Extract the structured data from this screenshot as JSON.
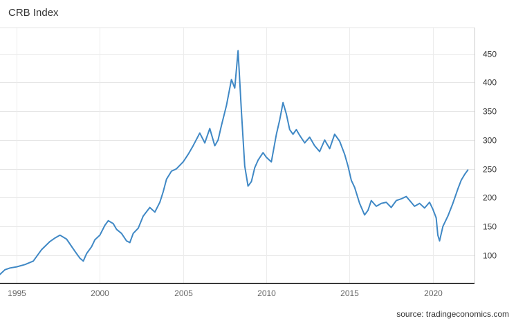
{
  "chart_data": {
    "type": "line",
    "title": "CRB Index",
    "source": "source: tradingeconomics.com",
    "xlabel": "",
    "ylabel": "",
    "xlim": [
      1994,
      2022.5
    ],
    "ylim": [
      52,
      495
    ],
    "x_ticks": [
      1995,
      2000,
      2005,
      2010,
      2015,
      2020
    ],
    "y_ticks": [
      100,
      150,
      200,
      250,
      300,
      350,
      400,
      450
    ],
    "grid": true,
    "line_color": "#3f88c5",
    "series": [
      {
        "name": "",
        "x": [
          1994.0,
          1994.3,
          1994.6,
          1995.0,
          1995.5,
          1996.0,
          1996.5,
          1997.0,
          1997.3,
          1997.6,
          1998.0,
          1998.5,
          1998.8,
          1999.0,
          1999.2,
          1999.5,
          1999.7,
          2000.0,
          2000.3,
          2000.5,
          2000.8,
          2001.0,
          2001.3,
          2001.6,
          2001.8,
          2002.0,
          2002.3,
          2002.6,
          2003.0,
          2003.3,
          2003.6,
          2003.8,
          2004.0,
          2004.3,
          2004.6,
          2005.0,
          2005.3,
          2005.6,
          2006.0,
          2006.3,
          2006.6,
          2006.9,
          2007.1,
          2007.3,
          2007.6,
          2007.9,
          2008.1,
          2008.3,
          2008.5,
          2008.7,
          2008.9,
          2009.1,
          2009.3,
          2009.5,
          2009.8,
          2010.0,
          2010.3,
          2010.6,
          2010.8,
          2011.0,
          2011.2,
          2011.4,
          2011.6,
          2011.8,
          2012.0,
          2012.3,
          2012.6,
          2012.9,
          2013.2,
          2013.5,
          2013.8,
          2014.1,
          2014.4,
          2014.7,
          2014.9,
          2015.1,
          2015.3,
          2015.6,
          2015.9,
          2016.1,
          2016.3,
          2016.6,
          2016.9,
          2017.2,
          2017.5,
          2017.8,
          2018.1,
          2018.4,
          2018.7,
          2018.9,
          2019.2,
          2019.5,
          2019.8,
          2020.0,
          2020.2,
          2020.3,
          2020.4,
          2020.6,
          2020.9,
          2021.2,
          2021.5,
          2021.7,
          2021.9,
          2022.1
        ],
        "values": [
          67,
          75,
          78,
          80,
          84,
          90,
          110,
          124,
          130,
          135,
          128,
          107,
          95,
          90,
          103,
          115,
          127,
          135,
          152,
          160,
          155,
          145,
          138,
          125,
          122,
          138,
          147,
          168,
          183,
          175,
          192,
          210,
          232,
          246,
          250,
          262,
          275,
          290,
          312,
          295,
          320,
          290,
          300,
          325,
          360,
          405,
          390,
          455,
          350,
          255,
          220,
          228,
          252,
          265,
          278,
          270,
          262,
          310,
          335,
          365,
          345,
          318,
          310,
          318,
          308,
          295,
          305,
          290,
          280,
          300,
          285,
          310,
          298,
          275,
          255,
          230,
          218,
          190,
          170,
          178,
          195,
          185,
          190,
          192,
          183,
          195,
          198,
          202,
          192,
          185,
          190,
          182,
          192,
          180,
          165,
          135,
          125,
          150,
          168,
          190,
          215,
          230,
          240,
          248
        ]
      }
    ]
  }
}
